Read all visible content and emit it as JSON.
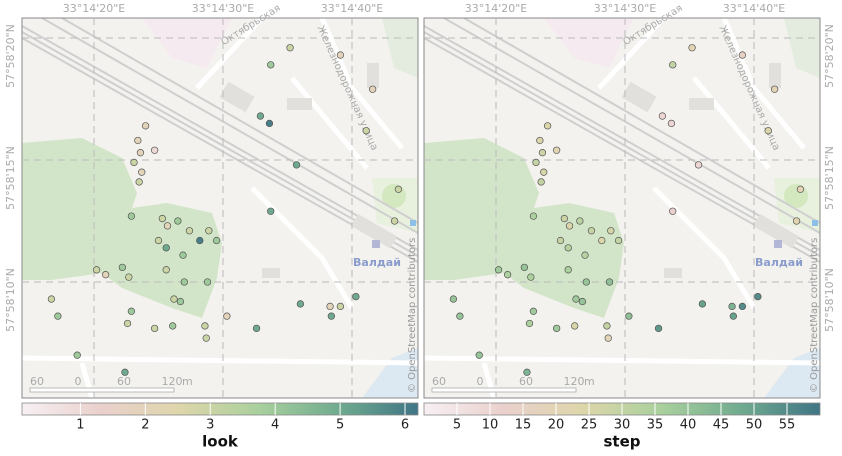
{
  "map": {
    "lon_ticks": [
      {
        "value": 20,
        "label": "33°14'20\"E"
      },
      {
        "value": 30,
        "label": "33°14'30\"E"
      },
      {
        "value": 40,
        "label": "33°14'40\"E"
      }
    ],
    "lat_ticks": [
      {
        "value": 20,
        "label": "57°58'20\"N"
      },
      {
        "value": 15,
        "label": "57°58'15\"N"
      },
      {
        "value": 10,
        "label": "57°58'10\"N"
      }
    ],
    "place_labels": [
      "Валдай",
      "Октябрьская",
      "Железнодорожная улица"
    ],
    "scale_bar": [
      "60",
      "0",
      "60",
      "120",
      "m"
    ],
    "attribution": "© OpenStreetMap contributors"
  },
  "colormap": [
    "#f7f0f4",
    "#ead0cc",
    "#ded6aa",
    "#a9d09d",
    "#70ab8f",
    "#3f7585"
  ],
  "panels": [
    {
      "variable": "look",
      "lim": [
        0.1,
        6.2
      ],
      "ticks": [
        1,
        2,
        3,
        4,
        5,
        6
      ]
    },
    {
      "variable": "step",
      "lim": [
        0,
        60
      ],
      "ticks": [
        5,
        10,
        15,
        20,
        25,
        30,
        35,
        40,
        45,
        50,
        55
      ]
    }
  ],
  "points": [
    {
      "lon_sec": 35.2,
      "lat_sec": 19.6,
      "look": 3,
      "step": 20
    },
    {
      "lon_sec": 39.1,
      "lat_sec": 19.3,
      "look": 2,
      "step": 15
    },
    {
      "lon_sec": 33.7,
      "lat_sec": 18.9,
      "look": 4,
      "step": 30
    },
    {
      "lon_sec": 41.6,
      "lat_sec": 17.9,
      "look": 2,
      "step": 20
    },
    {
      "lon_sec": 24.0,
      "lat_sec": 16.4,
      "look": 2,
      "step": 25
    },
    {
      "lon_sec": 32.9,
      "lat_sec": 16.8,
      "look": 5,
      "step": 10
    },
    {
      "lon_sec": 33.6,
      "lat_sec": 16.5,
      "look": 6,
      "step": 10
    },
    {
      "lon_sec": 23.4,
      "lat_sec": 15.8,
      "look": 2,
      "step": 25
    },
    {
      "lon_sec": 24.7,
      "lat_sec": 15.4,
      "look": 1,
      "step": 22
    },
    {
      "lon_sec": 23.6,
      "lat_sec": 15.3,
      "look": 2,
      "step": 28
    },
    {
      "lon_sec": 35.7,
      "lat_sec": 14.8,
      "look": 5,
      "step": 10
    },
    {
      "lon_sec": 23.1,
      "lat_sec": 14.9,
      "look": 3,
      "step": 30
    },
    {
      "lon_sec": 23.7,
      "lat_sec": 14.5,
      "look": 2,
      "step": 26
    },
    {
      "lon_sec": 23.5,
      "lat_sec": 14.1,
      "look": 3,
      "step": 30
    },
    {
      "lon_sec": 41.1,
      "lat_sec": 16.2,
      "look": 3,
      "step": 25
    },
    {
      "lon_sec": 43.6,
      "lat_sec": 13.8,
      "look": 3,
      "step": 20
    },
    {
      "lon_sec": 33.7,
      "lat_sec": 12.9,
      "look": 5,
      "step": 12
    },
    {
      "lon_sec": 43.3,
      "lat_sec": 12.5,
      "look": 3,
      "step": 22
    },
    {
      "lon_sec": 22.9,
      "lat_sec": 12.7,
      "look": 4,
      "step": 35
    },
    {
      "lon_sec": 25.3,
      "lat_sec": 12.6,
      "look": 3,
      "step": 28
    },
    {
      "lon_sec": 26.5,
      "lat_sec": 12.5,
      "look": 4,
      "step": 32
    },
    {
      "lon_sec": 25.7,
      "lat_sec": 12.3,
      "look": 2,
      "step": 25
    },
    {
      "lon_sec": 27.4,
      "lat_sec": 12.1,
      "look": 3,
      "step": 30
    },
    {
      "lon_sec": 28.9,
      "lat_sec": 12.1,
      "look": 3,
      "step": 27
    },
    {
      "lon_sec": 25.0,
      "lat_sec": 11.7,
      "look": 3,
      "step": 30
    },
    {
      "lon_sec": 25.6,
      "lat_sec": 11.4,
      "look": 5,
      "step": 33
    },
    {
      "lon_sec": 28.2,
      "lat_sec": 11.7,
      "look": 6,
      "step": 25
    },
    {
      "lon_sec": 29.5,
      "lat_sec": 11.7,
      "look": 4,
      "step": 30
    },
    {
      "lon_sec": 26.9,
      "lat_sec": 11.1,
      "look": 4,
      "step": 33
    },
    {
      "lon_sec": 25.6,
      "lat_sec": 10.5,
      "look": 3,
      "step": 35
    },
    {
      "lon_sec": 20.2,
      "lat_sec": 10.5,
      "look": 3,
      "step": 38
    },
    {
      "lon_sec": 20.9,
      "lat_sec": 10.3,
      "look": 2,
      "step": 35
    },
    {
      "lon_sec": 22.2,
      "lat_sec": 10.6,
      "look": 4,
      "step": 40
    },
    {
      "lon_sec": 22.7,
      "lat_sec": 10.2,
      "look": 3,
      "step": 35
    },
    {
      "lon_sec": 27.0,
      "lat_sec": 10.0,
      "look": 4,
      "step": 40
    },
    {
      "lon_sec": 28.8,
      "lat_sec": 10.0,
      "look": 4,
      "step": 42
    },
    {
      "lon_sec": 26.2,
      "lat_sec": 9.3,
      "look": 3,
      "step": 38
    },
    {
      "lon_sec": 26.7,
      "lat_sec": 9.2,
      "look": 4,
      "step": 40
    },
    {
      "lon_sec": 16.7,
      "lat_sec": 9.3,
      "look": 3,
      "step": 40
    },
    {
      "lon_sec": 22.9,
      "lat_sec": 8.8,
      "look": 4,
      "step": 38
    },
    {
      "lon_sec": 36.0,
      "lat_sec": 9.1,
      "look": 5,
      "step": 50
    },
    {
      "lon_sec": 38.3,
      "lat_sec": 9.0,
      "look": 2,
      "step": 45
    },
    {
      "lon_sec": 39.1,
      "lat_sec": 9.0,
      "look": 3,
      "step": 55
    },
    {
      "lon_sec": 40.3,
      "lat_sec": 9.4,
      "look": 5,
      "step": 55
    },
    {
      "lon_sec": 38.4,
      "lat_sec": 8.6,
      "look": 5,
      "step": 50
    },
    {
      "lon_sec": 17.2,
      "lat_sec": 8.6,
      "look": 4,
      "step": 40
    },
    {
      "lon_sec": 30.3,
      "lat_sec": 8.6,
      "look": 2,
      "step": 42
    },
    {
      "lon_sec": 28.6,
      "lat_sec": 8.2,
      "look": 3,
      "step": 30
    },
    {
      "lon_sec": 22.6,
      "lat_sec": 8.3,
      "look": 3,
      "step": 35
    },
    {
      "lon_sec": 24.7,
      "lat_sec": 8.1,
      "look": 3,
      "step": 38
    },
    {
      "lon_sec": 26.1,
      "lat_sec": 8.2,
      "look": 4,
      "step": 25
    },
    {
      "lon_sec": 32.6,
      "lat_sec": 8.1,
      "look": 5,
      "step": 52
    },
    {
      "lon_sec": 28.7,
      "lat_sec": 7.7,
      "look": 3,
      "step": 20
    },
    {
      "lon_sec": 18.7,
      "lat_sec": 7.0,
      "look": 4,
      "step": 40
    },
    {
      "lon_sec": 22.4,
      "lat_sec": 6.3,
      "look": 5,
      "step": 45
    }
  ]
}
